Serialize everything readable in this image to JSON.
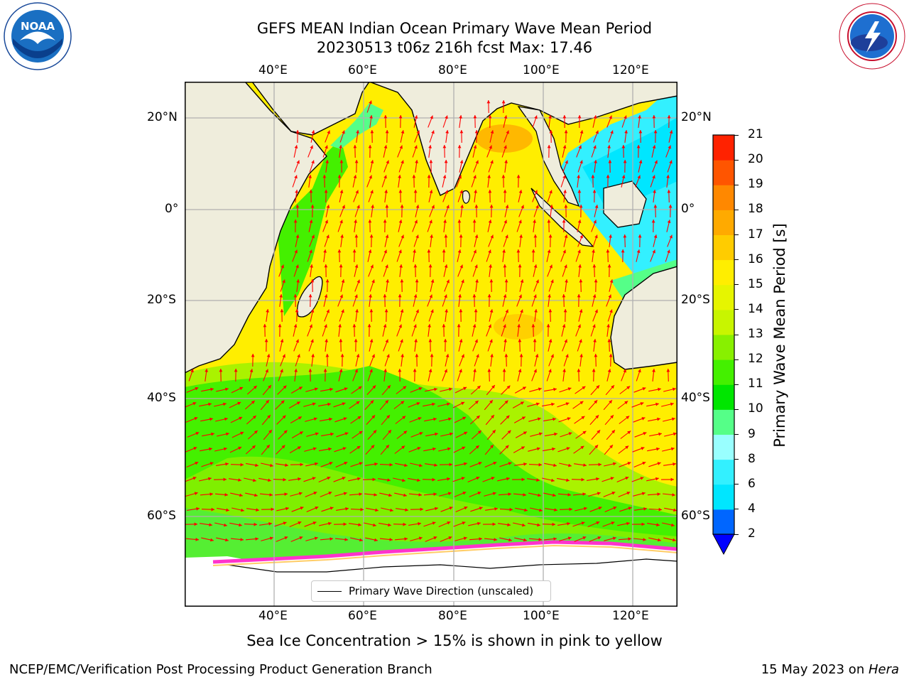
{
  "header": {
    "title_line1": "GEFS MEAN Indian Ocean Primary Wave Mean Period",
    "title_line2": "20230513 t06z 216h fcst   Max: 17.46"
  },
  "logos": {
    "left": {
      "name": "noaa-logo",
      "text": "NOAA",
      "ring_text": "NATIONAL OCEANIC AND ATMOSPHERIC ADMINISTRATION · U.S. DEPARTMENT OF COMMERCE"
    },
    "right": {
      "name": "nws-logo",
      "ring_text": "NATIONAL WEATHER SERVICE"
    }
  },
  "map": {
    "lon_labels": [
      "40°E",
      "60°E",
      "80°E",
      "100°E",
      "120°E"
    ],
    "lat_labels": [
      "20°N",
      "0°",
      "20°S",
      "40°S",
      "60°S"
    ],
    "legend": "Primary Wave Direction (unscaled)",
    "land_color": "#efeddc",
    "arrow_color": "#ff0000"
  },
  "colorbar": {
    "label": "Primary Wave Mean Period [s]",
    "ticks": [
      "2",
      "4",
      "6",
      "8",
      "9",
      "10",
      "11",
      "12",
      "13",
      "14",
      "15",
      "16",
      "17",
      "18",
      "19",
      "20",
      "21"
    ],
    "colors": [
      "#0066ff",
      "#00e6ff",
      "#33f0ff",
      "#99ffff",
      "#55ff88",
      "#00e600",
      "#44f000",
      "#88f000",
      "#c8f500",
      "#e6f500",
      "#ffee00",
      "#ffcc00",
      "#ffaa00",
      "#ff8800",
      "#ff5500",
      "#ff2200"
    ],
    "under_color": "#0000ff"
  },
  "footer": {
    "note": "Sea Ice Concentration > 15% is shown in pink to yellow",
    "credit": "NCEP/EMC/Verification Post Processing Product Generation Branch",
    "date": "15 May 2023 on ",
    "machine": "Hera"
  }
}
